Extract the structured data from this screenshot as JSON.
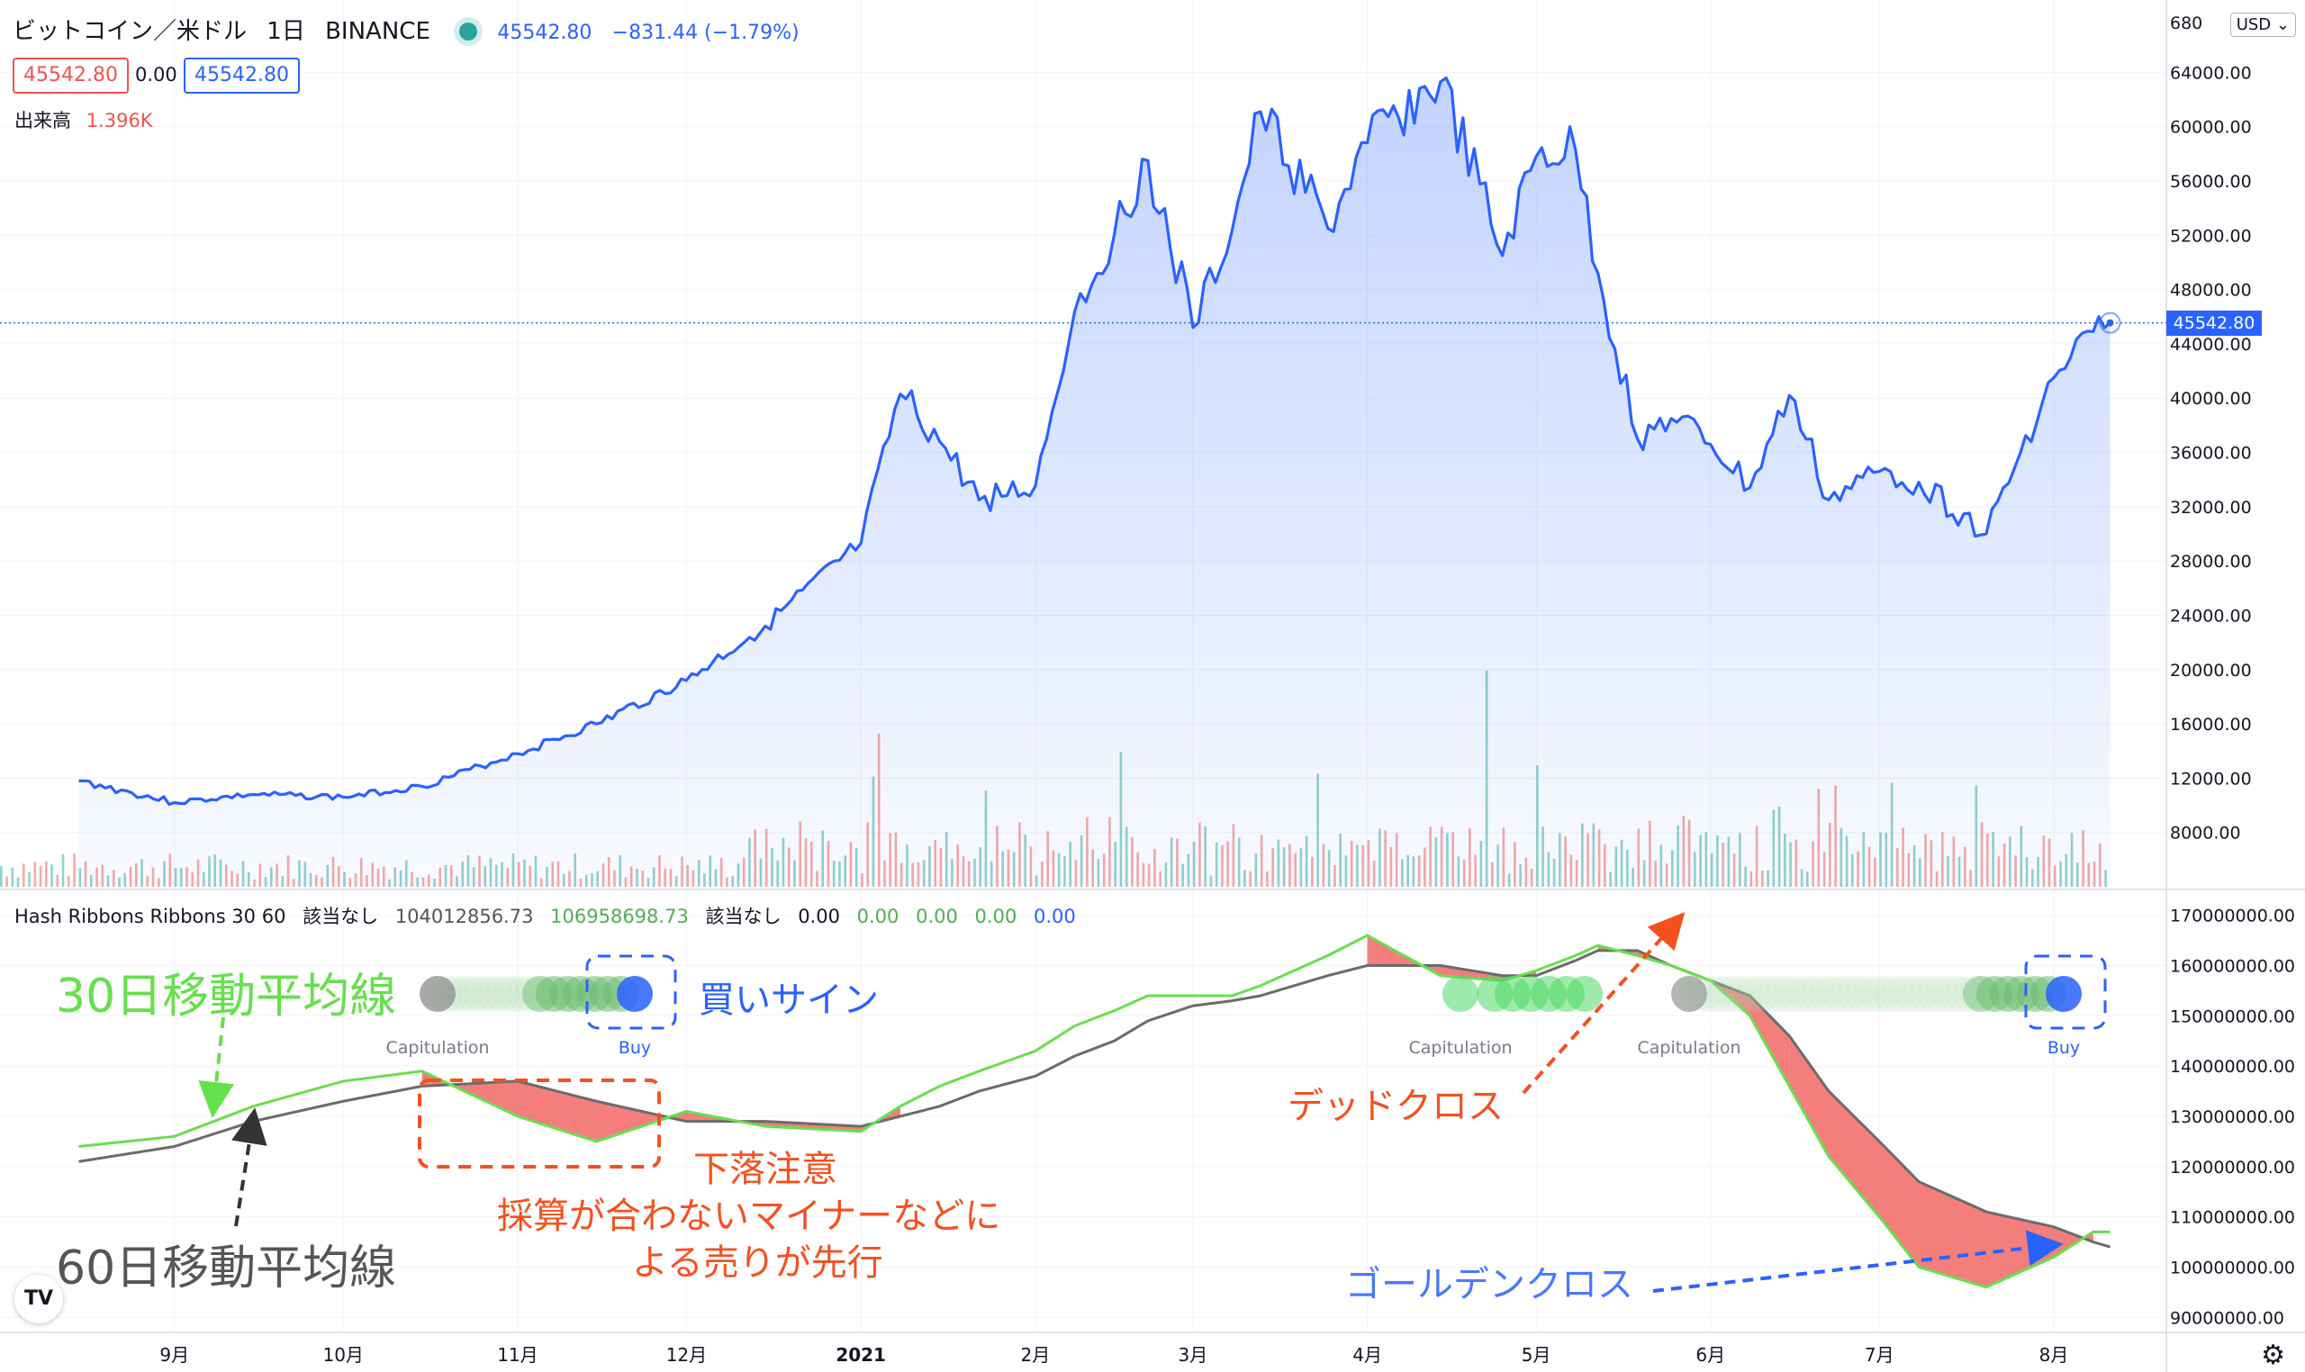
{
  "header": {
    "symbol": "ビットコイン／米ドル",
    "interval": "1日",
    "exchange": "BINANCE",
    "last": "45542.80",
    "change": "−831.44 (−1.79%)",
    "bid": "45542.80",
    "spread": "0.00",
    "ask": "45542.80",
    "volume_label": "出来高",
    "volume_value": "1.396K",
    "currency": "USD"
  },
  "indicator": {
    "title": "Hash Ribbons Ribbons 30 60",
    "na1": "該当なし",
    "v1": "104012856.73",
    "v2": "106958698.73",
    "na2": "該当なし",
    "values": [
      "0.00",
      "0.00",
      "0.00",
      "0.00",
      "0.00"
    ],
    "colors": [
      "#131722",
      "#4caf50",
      "#4caf50",
      "#4caf50",
      "#2962ff"
    ],
    "capitulation_label": "Capitulation",
    "buy_label": "Buy"
  },
  "annotations": {
    "ma30": "30日移動平均線",
    "ma60": "60日移動平均線",
    "buy_sign": "買いサイン",
    "caution_1": "下落注意",
    "caution_2": "採算が合わないマイナーなどに",
    "caution_3": "よる売りが先行",
    "dead_cross": "デッドクロス",
    "golden_cross": "ゴールデンクロス"
  },
  "price_axis": [
    "680",
    "64000.00",
    "60000.00",
    "56000.00",
    "52000.00",
    "48000.00",
    "44000.00",
    "40000.00",
    "36000.00",
    "32000.00",
    "28000.00",
    "24000.00",
    "20000.00",
    "16000.00",
    "12000.00",
    "8000.00"
  ],
  "hash_axis": [
    "170000000.00",
    "160000000.00",
    "150000000.00",
    "140000000.00",
    "130000000.00",
    "120000000.00",
    "110000000.00",
    "100000000.00",
    "90000000.00"
  ],
  "time_axis": [
    "9月",
    "10月",
    "11月",
    "12月",
    "2021",
    "2月",
    "3月",
    "4月",
    "5月",
    "6月",
    "7月",
    "8月"
  ],
  "price_tag": "45542.80",
  "logo": "TV",
  "chart_data": {
    "type": "area",
    "title": "ビットコイン／米ドル 1日 BINANCE",
    "x": [
      "2020-08-15",
      "2020-09-01",
      "2020-09-15",
      "2020-10-01",
      "2020-10-15",
      "2020-11-01",
      "2020-11-15",
      "2020-12-01",
      "2020-12-15",
      "2021-01-01",
      "2021-01-08",
      "2021-01-15",
      "2021-01-22",
      "2021-02-01",
      "2021-02-08",
      "2021-02-15",
      "2021-02-21",
      "2021-03-01",
      "2021-03-08",
      "2021-03-13",
      "2021-03-25",
      "2021-04-01",
      "2021-04-14",
      "2021-04-25",
      "2021-05-01",
      "2021-05-08",
      "2021-05-12",
      "2021-05-19",
      "2021-05-25",
      "2021-06-01",
      "2021-06-08",
      "2021-06-15",
      "2021-06-22",
      "2021-07-01",
      "2021-07-08",
      "2021-07-20",
      "2021-08-01",
      "2021-08-08",
      "2021-08-11"
    ],
    "close": [
      11800,
      10200,
      10800,
      10600,
      11400,
      13800,
      16000,
      19200,
      23200,
      29300,
      40300,
      36800,
      32500,
      33500,
      46400,
      52000,
      57500,
      45200,
      52400,
      61100,
      52500,
      58800,
      63300,
      50500,
      57800,
      58300,
      49200,
      37000,
      38500,
      36600,
      33400,
      40200,
      32500,
      34600,
      33800,
      30000,
      41500,
      44900,
      45542.8
    ],
    "volume_note": "volume bars shown below price (relative)",
    "ylim": [
      4000,
      68000
    ],
    "hash_ribbons": {
      "ylim": [
        87000000,
        173000000
      ],
      "ma30": [
        124000000,
        126000000,
        132000000,
        137000000,
        139000000,
        130000000,
        125000000,
        131000000,
        128000000,
        127000000,
        132000000,
        136000000,
        139000000,
        143000000,
        148000000,
        151000000,
        154000000,
        154000000,
        154000000,
        156000000,
        162000000,
        166000000,
        158000000,
        157000000,
        159000000,
        162000000,
        164000000,
        162000000,
        160000000,
        157000000,
        150000000,
        136000000,
        122000000,
        110000000,
        100000000,
        96000000,
        102000000,
        107000000,
        107000000
      ],
      "ma60": [
        121000000,
        124000000,
        129000000,
        133000000,
        136000000,
        137000000,
        133000000,
        129000000,
        129000000,
        128000000,
        130000000,
        132000000,
        135000000,
        138000000,
        142000000,
        145000000,
        149000000,
        152000000,
        153000000,
        154000000,
        158000000,
        160000000,
        160000000,
        158000000,
        158000000,
        161000000,
        163000000,
        163000000,
        160000000,
        157000000,
        154000000,
        146000000,
        135000000,
        125000000,
        117000000,
        111000000,
        108000000,
        105000000,
        104000000
      ]
    }
  }
}
